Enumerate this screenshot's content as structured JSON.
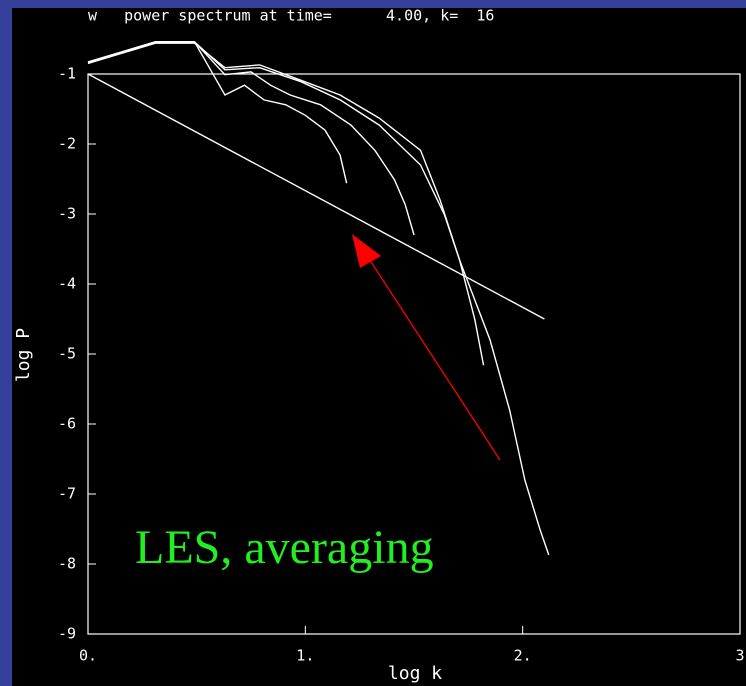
{
  "chart_data": {
    "type": "line",
    "title": "w   power spectrum at time=      4.00, k=  16",
    "x_label": "log k",
    "y_label": "log P",
    "annotation": "LES, averaging",
    "xlim": [
      0,
      3
    ],
    "ylim": [
      -9,
      -1
    ],
    "xticks": [
      {
        "value": 0,
        "label": "0."
      },
      {
        "value": 1,
        "label": "1."
      },
      {
        "value": 2,
        "label": "2."
      },
      3
    ],
    "yticks": [
      -1,
      -2,
      -3,
      -4,
      -5,
      -6,
      -7,
      -8,
      -9
    ],
    "series": [
      {
        "color": "#ffffff",
        "x": [
          0,
          0.31,
          0.49,
          0.63,
          0.72,
          0.81,
          0.91,
          1.0,
          1.09,
          1.16,
          1.19
        ],
        "values": [
          -0.83,
          -0.54,
          -0.54,
          -1.3,
          -1.16,
          -1.37,
          -1.44,
          -1.59,
          -1.8,
          -2.16,
          -2.56
        ]
      },
      {
        "color": "#ffffff",
        "x": [
          0,
          0.31,
          0.49,
          0.63,
          0.75,
          0.84,
          0.93,
          1.07,
          1.21,
          1.32,
          1.41,
          1.46,
          1.5
        ],
        "values": [
          -0.83,
          -0.54,
          -0.54,
          -1.01,
          -0.97,
          -1.16,
          -1.3,
          -1.44,
          -1.73,
          -2.09,
          -2.51,
          -2.87,
          -3.3
        ]
      },
      {
        "color": "#ffffff",
        "x": [
          0,
          0.31,
          0.49,
          0.63,
          0.79,
          0.98,
          1.16,
          1.34,
          1.53,
          1.64,
          1.71,
          1.78,
          1.82
        ],
        "values": [
          -0.83,
          -0.54,
          -0.54,
          -0.94,
          -0.91,
          -1.11,
          -1.37,
          -1.73,
          -2.3,
          -3.01,
          -3.66,
          -4.51,
          -5.16
        ]
      },
      {
        "color": "#ffffff",
        "x": [
          0,
          0.31,
          0.49,
          0.63,
          0.79,
          0.98,
          1.16,
          1.34,
          1.53,
          1.62,
          1.71,
          1.85,
          1.94,
          2.01,
          2.08,
          2.12
        ],
        "values": [
          -0.85,
          -0.56,
          -0.56,
          -0.91,
          -0.87,
          -1.09,
          -1.3,
          -1.63,
          -2.09,
          -2.8,
          -3.66,
          -4.8,
          -5.8,
          -6.8,
          -7.51,
          -7.87
        ]
      },
      {
        "color": "#ffffff",
        "x": [
          0,
          2.1
        ],
        "values": [
          -1,
          -4.5
        ]
      }
    ]
  }
}
